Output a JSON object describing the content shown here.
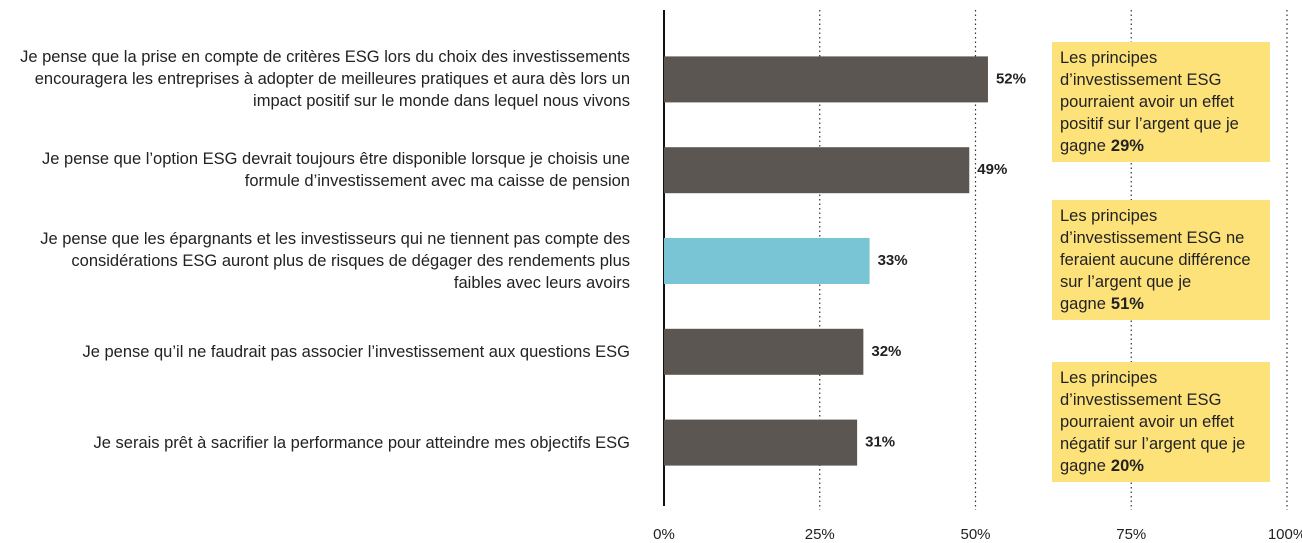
{
  "chart_data": {
    "type": "hbar",
    "categories": [
      "Je pense que la prise en compte de critères ESG lors du choix des investissements encouragera les entreprises à adopter de meilleures pratiques et aura dès lors un impact positif sur le monde dans lequel nous vivons",
      "Je pense que l’option ESG devrait toujours être disponible lorsque je choisis une formule d’investissement avec ma caisse de pension",
      "Je pense que les épargnants et les investisseurs qui ne tiennent pas compte des considérations ESG auront plus de risques de dégager des rendements plus faibles avec leurs avoirs",
      "Je pense qu’il ne faudrait pas associer l’investissement aux questions ESG",
      "Je serais prêt à sacrifier la performance pour atteindre mes objectifs ESG"
    ],
    "values": [
      52,
      49,
      33,
      32,
      31
    ],
    "value_labels": [
      "52%",
      "49%",
      "33%",
      "32%",
      "31%"
    ],
    "colors": [
      "#5b5651",
      "#5b5651",
      "#7ac5d5",
      "#5b5651",
      "#5b5651"
    ],
    "xlim": [
      0,
      100
    ],
    "xticks": [
      {
        "value": 0,
        "label": "0%"
      },
      {
        "value": 25,
        "label": "25%"
      },
      {
        "value": 50,
        "label": "50%"
      },
      {
        "value": 75,
        "label": "75%"
      },
      {
        "value": 100,
        "label": "100%"
      }
    ],
    "grid": true,
    "annotations": [
      {
        "text": "Les principes d’investissement ESG pourraient avoir un effet positif sur l’argent que je gagne",
        "value": 29,
        "value_label": "29%"
      },
      {
        "text": "Les principes d’investissement ESG ne feraient aucune différence sur l’argent que je gagne",
        "value": 51,
        "value_label": "51%"
      },
      {
        "text": "Les principes d’investissement ESG pourraient avoir un effet négatif sur l’argent que je gagne",
        "value": 20,
        "value_label": "20%"
      }
    ]
  }
}
